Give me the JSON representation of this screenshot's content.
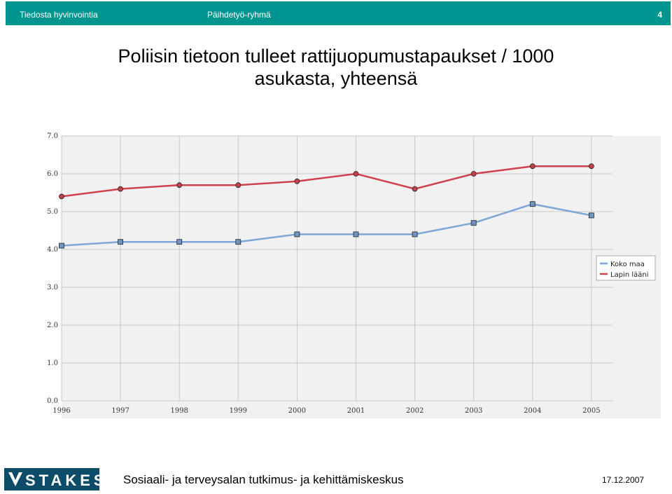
{
  "header": {
    "left": "Tiedosta hyvinvointia",
    "center": "Päihdetyö-ryhmä",
    "page_number": "4",
    "bg_color": "#00958f"
  },
  "slide": {
    "title_line1": "Poliisin tietoon tulleet rattijuopumustapaukset / 1000",
    "title_line2": "asukasta, yhteensä"
  },
  "footer": {
    "logo_text": "STAKES",
    "organization": "Sosiaali- ja terveysalan tutkimus- ja kehittämiskeskus",
    "date": "17.12.2007"
  },
  "chart_data": {
    "type": "line",
    "x": [
      "1996",
      "1997",
      "1998",
      "1999",
      "2000",
      "2001",
      "2002",
      "2003",
      "2004",
      "2005"
    ],
    "ylim": [
      0,
      7
    ],
    "yticks": [
      "0.0",
      "1.0",
      "2.0",
      "3.0",
      "4.0",
      "5.0",
      "6.0",
      "7.0"
    ],
    "grid": true,
    "legend_position": "right",
    "series": [
      {
        "name": "Koko maa",
        "color": "#7fa6d6",
        "marker": "square",
        "marker_color": "#6f95c2",
        "values": [
          4.1,
          4.2,
          4.2,
          4.2,
          4.4,
          4.4,
          4.4,
          4.7,
          5.2,
          4.9
        ]
      },
      {
        "name": "Lapin lääni",
        "color": "#d0414f",
        "marker": "circle",
        "marker_color": "#c2404c",
        "values": [
          5.4,
          5.6,
          5.7,
          5.7,
          5.8,
          6.0,
          5.6,
          6.0,
          6.2,
          6.2
        ]
      }
    ]
  }
}
